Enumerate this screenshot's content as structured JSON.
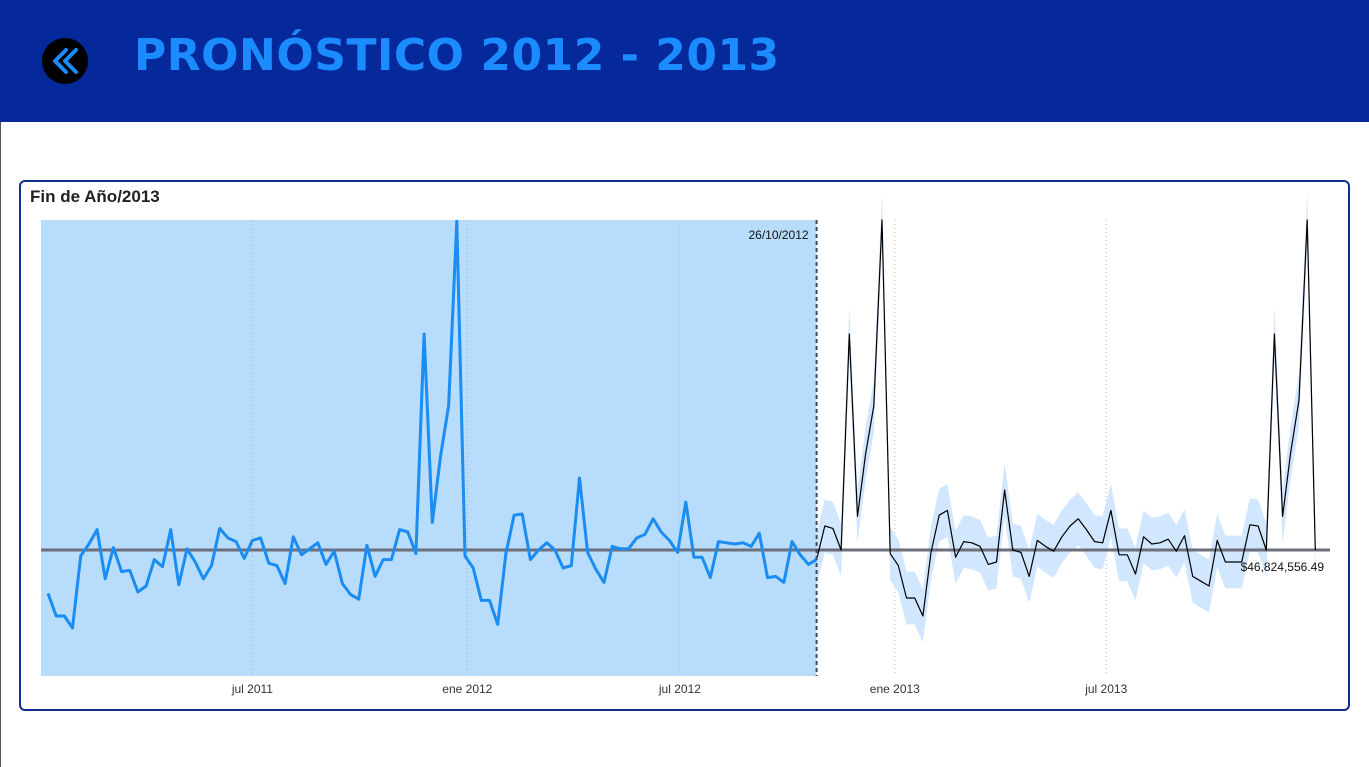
{
  "header": {
    "title": "PRONÓSTICO 2012 - 2013",
    "back_icon": "double-chevron-left-icon",
    "background": "#05289a",
    "title_color": "#1a8cff"
  },
  "card": {
    "title": "Fin de Año/2013",
    "border_color": "#102e8c"
  },
  "chart_data": {
    "type": "line",
    "title": "Fin de Año/2013",
    "xlabel": "",
    "ylabel": "",
    "x_ticks": [
      {
        "label": "jul 2011",
        "date": "2011-07-01"
      },
      {
        "label": "ene 2012",
        "date": "2012-01-01"
      },
      {
        "label": "jul 2012",
        "date": "2012-07-01"
      },
      {
        "label": "ene 2013",
        "date": "2013-01-01"
      },
      {
        "label": "jul 2013",
        "date": "2013-07-01"
      }
    ],
    "x_range": [
      "2011-01-01",
      "2013-12-31"
    ],
    "y_range": [
      -105,
      275
    ],
    "reference_line": {
      "label": "$46,824,556.49",
      "value": 0
    },
    "forecast_start": {
      "label": "26/10/2012",
      "date": "2012-10-26"
    },
    "grid": "vertical-dotted",
    "colors": {
      "actual": "#1a8cf2",
      "forecast": "#000000",
      "band": "#cfe5ff",
      "history_shade": "#b8dcfc",
      "reference": "#6d6f7a"
    },
    "series": [
      {
        "role": "actual",
        "points": [
          {
            "x": "2011-01-07",
            "y": -36
          },
          {
            "x": "2011-01-14",
            "y": -55
          },
          {
            "x": "2011-01-21",
            "y": -55
          },
          {
            "x": "2011-01-28",
            "y": -65
          },
          {
            "x": "2011-02-04",
            "y": -5
          },
          {
            "x": "2011-02-11",
            "y": 5
          },
          {
            "x": "2011-02-18",
            "y": 17
          },
          {
            "x": "2011-02-25",
            "y": -24
          },
          {
            "x": "2011-03-04",
            "y": 2
          },
          {
            "x": "2011-03-11",
            "y": -18
          },
          {
            "x": "2011-03-18",
            "y": -17
          },
          {
            "x": "2011-03-25",
            "y": -35
          },
          {
            "x": "2011-04-01",
            "y": -30
          },
          {
            "x": "2011-04-08",
            "y": -8
          },
          {
            "x": "2011-04-15",
            "y": -14
          },
          {
            "x": "2011-04-22",
            "y": 17
          },
          {
            "x": "2011-04-29",
            "y": -29
          },
          {
            "x": "2011-05-06",
            "y": 1
          },
          {
            "x": "2011-05-13",
            "y": -10
          },
          {
            "x": "2011-05-20",
            "y": -24
          },
          {
            "x": "2011-05-27",
            "y": -13
          },
          {
            "x": "2011-06-03",
            "y": 18
          },
          {
            "x": "2011-06-10",
            "y": 10
          },
          {
            "x": "2011-06-17",
            "y": 7
          },
          {
            "x": "2011-06-24",
            "y": -7
          },
          {
            "x": "2011-07-01",
            "y": 8
          },
          {
            "x": "2011-07-08",
            "y": 10
          },
          {
            "x": "2011-07-15",
            "y": -11
          },
          {
            "x": "2011-07-22",
            "y": -13
          },
          {
            "x": "2011-07-29",
            "y": -28
          },
          {
            "x": "2011-08-05",
            "y": 11
          },
          {
            "x": "2011-08-12",
            "y": -4
          },
          {
            "x": "2011-08-19",
            "y": 1
          },
          {
            "x": "2011-08-26",
            "y": 6
          },
          {
            "x": "2011-09-02",
            "y": -12
          },
          {
            "x": "2011-09-09",
            "y": -1
          },
          {
            "x": "2011-09-16",
            "y": -28
          },
          {
            "x": "2011-09-23",
            "y": -37
          },
          {
            "x": "2011-09-30",
            "y": -41
          },
          {
            "x": "2011-10-07",
            "y": 4
          },
          {
            "x": "2011-10-14",
            "y": -22
          },
          {
            "x": "2011-10-21",
            "y": -8
          },
          {
            "x": "2011-10-28",
            "y": -8
          },
          {
            "x": "2011-11-04",
            "y": 17
          },
          {
            "x": "2011-11-11",
            "y": 15
          },
          {
            "x": "2011-11-18",
            "y": -3
          },
          {
            "x": "2011-11-25",
            "y": 180
          },
          {
            "x": "2011-12-02",
            "y": 23
          },
          {
            "x": "2011-12-09",
            "y": 78
          },
          {
            "x": "2011-12-16",
            "y": 120
          },
          {
            "x": "2011-12-23",
            "y": 274
          },
          {
            "x": "2011-12-30",
            "y": -5
          },
          {
            "x": "2012-01-06",
            "y": -15
          },
          {
            "x": "2012-01-13",
            "y": -42
          },
          {
            "x": "2012-01-20",
            "y": -42
          },
          {
            "x": "2012-01-27",
            "y": -62
          },
          {
            "x": "2012-02-03",
            "y": -3
          },
          {
            "x": "2012-02-10",
            "y": 29
          },
          {
            "x": "2012-02-17",
            "y": 30
          },
          {
            "x": "2012-02-24",
            "y": -8
          },
          {
            "x": "2012-03-02",
            "y": 0
          },
          {
            "x": "2012-03-09",
            "y": 6
          },
          {
            "x": "2012-03-16",
            "y": 0
          },
          {
            "x": "2012-03-23",
            "y": -15
          },
          {
            "x": "2012-03-30",
            "y": -13
          },
          {
            "x": "2012-04-06",
            "y": 60
          },
          {
            "x": "2012-04-13",
            "y": -2
          },
          {
            "x": "2012-04-20",
            "y": -16
          },
          {
            "x": "2012-04-27",
            "y": -27
          },
          {
            "x": "2012-05-04",
            "y": 3
          },
          {
            "x": "2012-05-11",
            "y": 1
          },
          {
            "x": "2012-05-18",
            "y": 1
          },
          {
            "x": "2012-05-25",
            "y": 10
          },
          {
            "x": "2012-06-01",
            "y": 13
          },
          {
            "x": "2012-06-08",
            "y": 26
          },
          {
            "x": "2012-06-15",
            "y": 15
          },
          {
            "x": "2012-06-22",
            "y": 8
          },
          {
            "x": "2012-06-29",
            "y": -2
          },
          {
            "x": "2012-07-06",
            "y": 40
          },
          {
            "x": "2012-07-13",
            "y": -6
          },
          {
            "x": "2012-07-20",
            "y": -6
          },
          {
            "x": "2012-07-27",
            "y": -23
          },
          {
            "x": "2012-08-03",
            "y": 7
          },
          {
            "x": "2012-08-10",
            "y": 6
          },
          {
            "x": "2012-08-17",
            "y": 5
          },
          {
            "x": "2012-08-24",
            "y": 6
          },
          {
            "x": "2012-08-31",
            "y": 3
          },
          {
            "x": "2012-09-07",
            "y": 14
          },
          {
            "x": "2012-09-14",
            "y": -23
          },
          {
            "x": "2012-09-21",
            "y": -22
          },
          {
            "x": "2012-09-28",
            "y": -27
          },
          {
            "x": "2012-10-05",
            "y": 7
          },
          {
            "x": "2012-10-12",
            "y": -4
          },
          {
            "x": "2012-10-19",
            "y": -12
          },
          {
            "x": "2012-10-26",
            "y": -8
          }
        ]
      },
      {
        "role": "forecast",
        "points": [
          {
            "x": "2012-11-02",
            "y": 20
          },
          {
            "x": "2012-11-09",
            "y": 18
          },
          {
            "x": "2012-11-16",
            "y": 0
          },
          {
            "x": "2012-11-23",
            "y": 180
          },
          {
            "x": "2012-11-30",
            "y": 28
          },
          {
            "x": "2012-12-07",
            "y": 80
          },
          {
            "x": "2012-12-14",
            "y": 120
          },
          {
            "x": "2012-12-21",
            "y": 275
          },
          {
            "x": "2012-12-28",
            "y": -3
          },
          {
            "x": "2013-01-04",
            "y": -13
          },
          {
            "x": "2013-01-11",
            "y": -40
          },
          {
            "x": "2013-01-18",
            "y": -40
          },
          {
            "x": "2013-01-25",
            "y": -55
          },
          {
            "x": "2013-02-01",
            "y": -2
          },
          {
            "x": "2013-02-08",
            "y": 29
          },
          {
            "x": "2013-02-15",
            "y": 33
          },
          {
            "x": "2013-02-22",
            "y": -6
          },
          {
            "x": "2013-03-01",
            "y": 7
          },
          {
            "x": "2013-03-08",
            "y": 6
          },
          {
            "x": "2013-03-15",
            "y": 3
          },
          {
            "x": "2013-03-22",
            "y": -12
          },
          {
            "x": "2013-03-29",
            "y": -10
          },
          {
            "x": "2013-04-05",
            "y": 50
          },
          {
            "x": "2013-04-12",
            "y": 0
          },
          {
            "x": "2013-04-19",
            "y": -2
          },
          {
            "x": "2013-04-26",
            "y": -22
          },
          {
            "x": "2013-05-03",
            "y": 8
          },
          {
            "x": "2013-05-10",
            "y": 3
          },
          {
            "x": "2013-05-17",
            "y": -1
          },
          {
            "x": "2013-05-24",
            "y": 11
          },
          {
            "x": "2013-05-31",
            "y": 20
          },
          {
            "x": "2013-06-07",
            "y": 26
          },
          {
            "x": "2013-06-14",
            "y": 17
          },
          {
            "x": "2013-06-21",
            "y": 7
          },
          {
            "x": "2013-06-28",
            "y": 6
          },
          {
            "x": "2013-07-05",
            "y": 33
          },
          {
            "x": "2013-07-12",
            "y": -4
          },
          {
            "x": "2013-07-19",
            "y": -4
          },
          {
            "x": "2013-07-26",
            "y": -20
          },
          {
            "x": "2013-08-02",
            "y": 11
          },
          {
            "x": "2013-08-09",
            "y": 5
          },
          {
            "x": "2013-08-16",
            "y": 6
          },
          {
            "x": "2013-08-23",
            "y": 9
          },
          {
            "x": "2013-08-30",
            "y": -1
          },
          {
            "x": "2013-09-06",
            "y": 12
          },
          {
            "x": "2013-09-13",
            "y": -22
          },
          {
            "x": "2013-09-20",
            "y": -26
          },
          {
            "x": "2013-09-27",
            "y": -30
          },
          {
            "x": "2013-10-04",
            "y": 8
          },
          {
            "x": "2013-10-11",
            "y": -10
          },
          {
            "x": "2013-10-18",
            "y": -10
          },
          {
            "x": "2013-10-25",
            "y": -10
          },
          {
            "x": "2013-11-01",
            "y": 21
          },
          {
            "x": "2013-11-08",
            "y": 20
          },
          {
            "x": "2013-11-15",
            "y": 0
          },
          {
            "x": "2013-11-22",
            "y": 180
          },
          {
            "x": "2013-11-29",
            "y": 28
          },
          {
            "x": "2013-12-06",
            "y": 82
          },
          {
            "x": "2013-12-13",
            "y": 125
          },
          {
            "x": "2013-12-20",
            "y": 275
          },
          {
            "x": "2013-12-27",
            "y": 0
          }
        ]
      }
    ],
    "confidence_band_width": 22
  }
}
